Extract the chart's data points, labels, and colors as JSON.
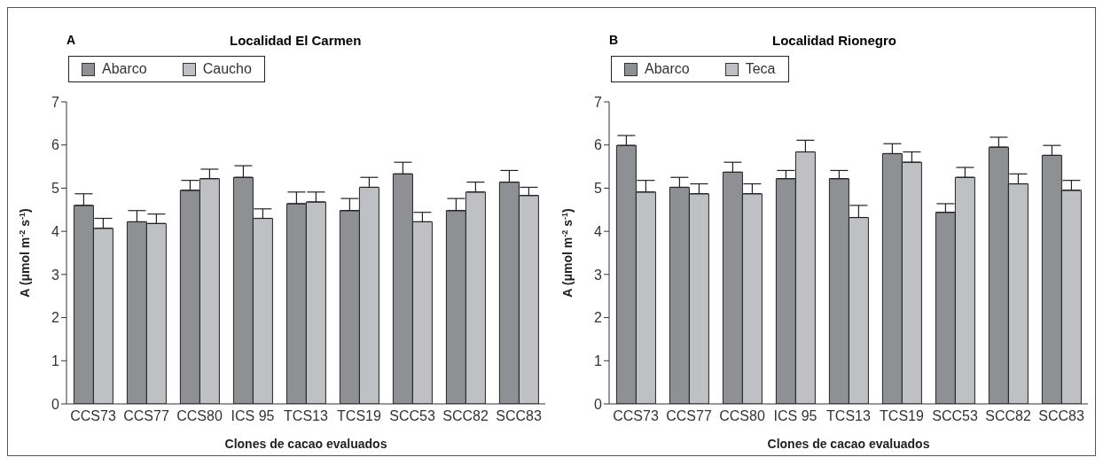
{
  "chart_data": [
    {
      "type": "bar",
      "title": "Localidad El Carmen",
      "annotations": [
        "A"
      ],
      "xlabel": "Clones de cacao evaluados",
      "ylabel": "A (μmol m$^{-2}$ s$^{-1}$)",
      "categories": [
        "CCS73",
        "CCS77",
        "CCS80",
        "ICS 95",
        "TCS13",
        "TCS19",
        "SCC53",
        "SCC82",
        "SCC83"
      ],
      "series": [
        {
          "name": "Abarco",
          "color": "#8e9094",
          "values": [
            4.6,
            4.22,
            4.95,
            5.25,
            4.64,
            4.48,
            5.33,
            4.48,
            5.14
          ],
          "errors": [
            [
              4.6,
              4.87
            ],
            [
              4.22,
              4.48
            ],
            [
              4.95,
              5.18
            ],
            [
              5.25,
              5.52
            ],
            [
              4.64,
              4.91
            ],
            [
              4.48,
              4.76
            ],
            [
              5.33,
              5.6
            ],
            [
              4.48,
              4.76
            ],
            [
              5.14,
              5.41
            ]
          ]
        },
        {
          "name": "Caucho",
          "color": "#bfc0c4",
          "values": [
            4.07,
            4.18,
            5.22,
            4.3,
            4.68,
            5.02,
            4.22,
            4.91,
            4.83
          ],
          "errors": [
            [
              4.07,
              4.3
            ],
            [
              4.18,
              4.4
            ],
            [
              5.22,
              5.44
            ],
            [
              4.3,
              4.52
            ],
            [
              4.68,
              4.91
            ],
            [
              5.02,
              5.25
            ],
            [
              4.22,
              4.44
            ],
            [
              4.91,
              5.14
            ],
            [
              4.83,
              5.02
            ]
          ]
        }
      ],
      "ylim": [
        0,
        7
      ],
      "yticks": [
        0,
        1,
        2,
        3,
        4,
        5,
        6,
        7
      ],
      "grid": false,
      "legend": "top left"
    },
    {
      "type": "bar",
      "title": "Localidad Rionegro",
      "annotations": [
        "B"
      ],
      "xlabel": "Clones de cacao evaluados",
      "ylabel": "A (μmol m$^{-2}$ s$^{-1}$)",
      "categories": [
        "CCS73",
        "CCS77",
        "CCS80",
        "ICS 95",
        "TCS13",
        "TCS19",
        "SCC53",
        "SCC82",
        "SCC83"
      ],
      "series": [
        {
          "name": "Abarco",
          "color": "#8e9094",
          "values": [
            5.99,
            5.02,
            5.37,
            5.22,
            5.22,
            5.8,
            4.44,
            5.95,
            5.76
          ],
          "errors": [
            [
              5.99,
              6.22
            ],
            [
              5.02,
              5.25
            ],
            [
              5.37,
              5.6
            ],
            [
              5.22,
              5.41
            ],
            [
              5.22,
              5.41
            ],
            [
              5.8,
              6.03
            ],
            [
              4.44,
              4.64
            ],
            [
              5.95,
              6.18
            ],
            [
              5.76,
              5.99
            ]
          ]
        },
        {
          "name": "Teca",
          "color": "#bfc0c4",
          "values": [
            4.91,
            4.87,
            4.87,
            5.84,
            4.32,
            5.6,
            5.25,
            5.1,
            4.95
          ],
          "errors": [
            [
              4.91,
              5.18
            ],
            [
              4.87,
              5.1
            ],
            [
              4.87,
              5.1
            ],
            [
              5.84,
              6.11
            ],
            [
              4.32,
              4.6
            ],
            [
              5.6,
              5.84
            ],
            [
              5.25,
              5.48
            ],
            [
              5.1,
              5.33
            ],
            [
              4.95,
              5.18
            ]
          ]
        }
      ],
      "ylim": [
        0,
        7
      ],
      "yticks": [
        0,
        1,
        2,
        3,
        4,
        5,
        6,
        7
      ],
      "grid": false,
      "legend": "top left"
    }
  ]
}
